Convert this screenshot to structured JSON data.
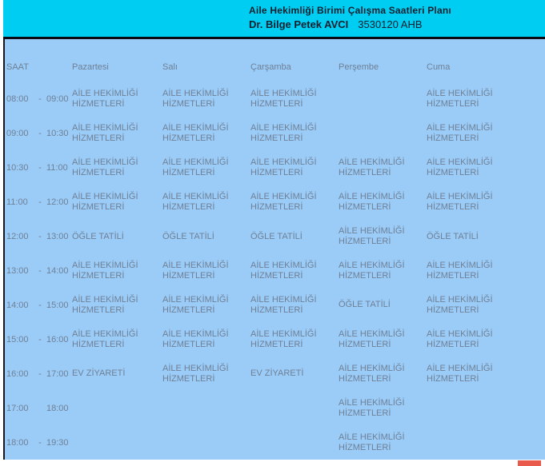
{
  "banner": {
    "title": "Aile Hekimliği Birimi Çalışma Saatleri Planı",
    "doctor_name": "Dr. Bilge Petek AVCI",
    "unit_code": "3530120 AHB"
  },
  "schedule": {
    "columns": [
      "SAAT",
      "Pazartesi",
      "Salı",
      "Çarşamba",
      "Perşembe",
      "Cuma"
    ],
    "rows": [
      {
        "time_start": "08:00",
        "time_sep": "-",
        "time_end": "09:00",
        "cells": [
          "AİLE HEKİMLİĞİ HİZMETLERİ",
          "AİLE HEKİMLİĞİ HİZMETLERİ",
          "AİLE HEKİMLİĞİ HİZMETLERİ",
          "",
          "AİLE HEKİMLİĞİ HİZMETLERİ"
        ]
      },
      {
        "time_start": "09:00",
        "time_sep": "-",
        "time_end": "10:30",
        "cells": [
          "AİLE HEKİMLİĞİ HİZMETLERİ",
          "AİLE HEKİMLİĞİ HİZMETLERİ",
          "AİLE HEKİMLİĞİ HİZMETLERİ",
          "",
          "AİLE HEKİMLİĞİ HİZMETLERİ"
        ]
      },
      {
        "time_start": "10:30",
        "time_sep": "-",
        "time_end": "11:00",
        "cells": [
          "AİLE HEKİMLİĞİ HİZMETLERİ",
          "AİLE HEKİMLİĞİ HİZMETLERİ",
          "AİLE HEKİMLİĞİ HİZMETLERİ",
          "AİLE HEKİMLİĞİ HİZMETLERİ",
          "AİLE HEKİMLİĞİ HİZMETLERİ"
        ]
      },
      {
        "time_start": "11:00",
        "time_sep": "-",
        "time_end": "12:00",
        "cells": [
          "AİLE HEKİMLİĞİ HİZMETLERİ",
          "AİLE HEKİMLİĞİ HİZMETLERİ",
          "AİLE HEKİMLİĞİ HİZMETLERİ",
          "AİLE HEKİMLİĞİ HİZMETLERİ",
          "AİLE HEKİMLİĞİ HİZMETLERİ"
        ]
      },
      {
        "time_start": "12:00",
        "time_sep": "-",
        "time_end": "13:00",
        "cells": [
          "ÖĞLE TATİLİ",
          "ÖĞLE TATİLİ",
          "ÖĞLE TATİLİ",
          "AİLE HEKİMLİĞİ HİZMETLERİ",
          "ÖĞLE TATİLİ"
        ]
      },
      {
        "time_start": "13:00",
        "time_sep": "-",
        "time_end": "14:00",
        "cells": [
          "AİLE HEKİMLİĞİ HİZMETLERİ",
          "AİLE HEKİMLİĞİ HİZMETLERİ",
          "AİLE HEKİMLİĞİ HİZMETLERİ",
          "AİLE HEKİMLİĞİ HİZMETLERİ",
          "AİLE HEKİMLİĞİ HİZMETLERİ"
        ]
      },
      {
        "time_start": "14:00",
        "time_sep": "-",
        "time_end": "15:00",
        "cells": [
          "AİLE HEKİMLİĞİ HİZMETLERİ",
          "AİLE HEKİMLİĞİ HİZMETLERİ",
          "AİLE HEKİMLİĞİ HİZMETLERİ",
          "ÖĞLE TATİLİ",
          "AİLE HEKİMLİĞİ HİZMETLERİ"
        ]
      },
      {
        "time_start": "15:00",
        "time_sep": "-",
        "time_end": "16:00",
        "cells": [
          "AİLE HEKİMLİĞİ HİZMETLERİ",
          "AİLE HEKİMLİĞİ HİZMETLERİ",
          "AİLE HEKİMLİĞİ HİZMETLERİ",
          "AİLE HEKİMLİĞİ HİZMETLERİ",
          "AİLE HEKİMLİĞİ HİZMETLERİ"
        ]
      },
      {
        "time_start": "16:00",
        "time_sep": "-",
        "time_end": "17:00",
        "cells": [
          "EV ZİYARETİ",
          "AİLE HEKİMLİĞİ HİZMETLERİ",
          "EV ZİYARETİ",
          "AİLE HEKİMLİĞİ HİZMETLERİ",
          "AİLE HEKİMLİĞİ HİZMETLERİ"
        ]
      },
      {
        "time_start": "17:00",
        "time_sep": "",
        "time_end": "18:00",
        "cells": [
          "",
          "",
          "",
          "AİLE HEKİMLİĞİ HİZMETLERİ",
          ""
        ]
      },
      {
        "time_start": "18:00",
        "time_sep": "-",
        "time_end": "19:30",
        "cells": [
          "",
          "",
          "",
          "AİLE HEKİMLİĞİ HİZMETLERİ",
          ""
        ]
      }
    ]
  },
  "colors": {
    "banner_cyan": "#00cdf2",
    "divider_black": "#0b0b15",
    "table_blue": "#9bccf8",
    "text_slate": "#6f8095",
    "title_dark": "#15202f",
    "marker_red": "#e9594c"
  }
}
